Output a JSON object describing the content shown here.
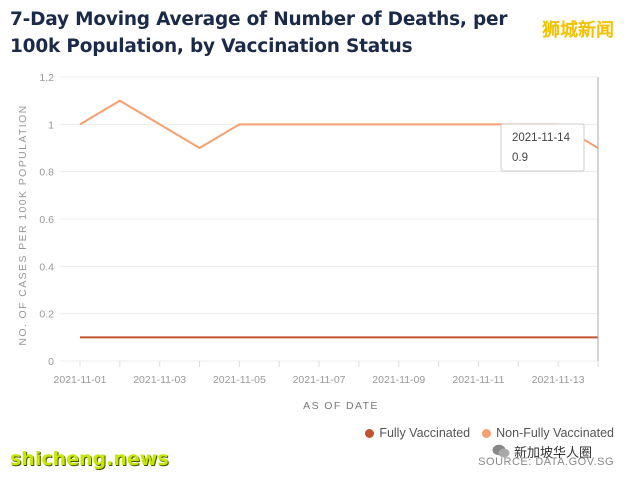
{
  "title": "7-Day Moving Average of Number of Deaths, per 100k Population, by Vaccination Status",
  "watermark_top": "狮城新闻",
  "watermark_bottom": "shicheng.news",
  "watermark_wechat": "新加坡华人圈",
  "source": "SOURCE: DATA.GOV.SG",
  "colors": {
    "fully": "#c0552d",
    "non_fully": "#f5a070",
    "title": "#1c2a4a"
  },
  "chart_data": {
    "type": "line",
    "xlabel": "AS OF DATE",
    "ylabel": "NO. OF CASES PER 100K POPULATION",
    "x": [
      "2021-11-01",
      "2021-11-02",
      "2021-11-03",
      "2021-11-04",
      "2021-11-05",
      "2021-11-06",
      "2021-11-07",
      "2021-11-08",
      "2021-11-09",
      "2021-11-10",
      "2021-11-11",
      "2021-11-12",
      "2021-11-13",
      "2021-11-14"
    ],
    "x_tick_labels": [
      "2021-11-01",
      "2021-11-03",
      "2021-11-05",
      "2021-11-07",
      "2021-11-09",
      "2021-11-11",
      "2021-11-13"
    ],
    "y_ticks": [
      0,
      0.2,
      0.4,
      0.6,
      0.8,
      1,
      1.2
    ],
    "ylim": [
      0,
      1.2
    ],
    "grid": true,
    "legend_position": "bottom-right",
    "series": [
      {
        "name": "Fully Vaccinated",
        "color": "#c0552d",
        "values": [
          0.1,
          0.1,
          0.1,
          0.1,
          0.1,
          0.1,
          0.1,
          0.1,
          0.1,
          0.1,
          0.1,
          0.1,
          0.1,
          0.1
        ]
      },
      {
        "name": "Non-Fully Vaccinated",
        "color": "#f5a070",
        "values": [
          1,
          1.1,
          1,
          0.9,
          1,
          1,
          1,
          1,
          1,
          1,
          1,
          1,
          1,
          0.9
        ]
      }
    ],
    "tooltip": {
      "date": "2021-11-14",
      "value": "0.9"
    }
  }
}
